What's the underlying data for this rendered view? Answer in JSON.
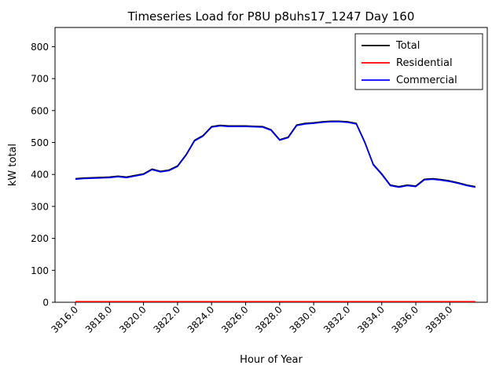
{
  "figure": {
    "title": "Timeseries Load for P8U p8uhs17_1247  Day 160",
    "xlabel": "Hour of Year",
    "ylabel": "kW total"
  },
  "chart_data": {
    "type": "line",
    "title": "Timeseries Load for P8U p8uhs17_1247  Day 160",
    "xlabel": "Hour of Year",
    "ylabel": "kW total",
    "xlim": [
      3814.8,
      3840.2
    ],
    "ylim": [
      0,
      860
    ],
    "grid": false,
    "legend_position": "upper right",
    "xticks": [
      3816,
      3818,
      3820,
      3822,
      3824,
      3826,
      3828,
      3830,
      3832,
      3834,
      3836,
      3838
    ],
    "xtick_labels": [
      "3816.0",
      "3818.0",
      "3820.0",
      "3822.0",
      "3824.0",
      "3826.0",
      "3828.0",
      "3830.0",
      "3832.0",
      "3834.0",
      "3836.0",
      "3838.0"
    ],
    "yticks": [
      0,
      100,
      200,
      300,
      400,
      500,
      600,
      700,
      800
    ],
    "x": [
      3816,
      3816.5,
      3817,
      3817.5,
      3818,
      3818.5,
      3819,
      3819.5,
      3820,
      3820.5,
      3821,
      3821.5,
      3822,
      3822.5,
      3823,
      3823.5,
      3824,
      3824.5,
      3825,
      3825.5,
      3826,
      3826.5,
      3827,
      3827.5,
      3828,
      3828.5,
      3829,
      3829.5,
      3830,
      3830.5,
      3831,
      3831.5,
      3832,
      3832.5,
      3833,
      3833.5,
      3834,
      3834.5,
      3835,
      3835.5,
      3836,
      3836.5,
      3837,
      3837.5,
      3838,
      3838.5,
      3839,
      3839.5
    ],
    "series": [
      {
        "name": "Total",
        "color": "#000000",
        "values": [
          387,
          389,
          390,
          391,
          392,
          395,
          392,
          397,
          402,
          417,
          410,
          414,
          427,
          462,
          507,
          522,
          550,
          554,
          552,
          552,
          552,
          551,
          550,
          540,
          509,
          517,
          555,
          560,
          562,
          565,
          567,
          567,
          565,
          560,
          502,
          432,
          402,
          367,
          362,
          367,
          364,
          385,
          387,
          384,
          380,
          374,
          367,
          362
        ]
      },
      {
        "name": "Residential",
        "color": "#ff0000",
        "values": [
          2,
          2,
          2,
          2,
          2,
          2,
          2,
          2,
          2,
          2,
          2,
          2,
          2,
          2,
          2,
          2,
          2,
          2,
          2,
          2,
          2,
          2,
          2,
          2,
          2,
          2,
          2,
          2,
          2,
          2,
          2,
          2,
          2,
          2,
          2,
          2,
          2,
          2,
          2,
          2,
          2,
          2,
          2,
          2,
          2,
          2,
          2,
          2
        ]
      },
      {
        "name": "Commercial",
        "color": "#0000ff",
        "values": [
          385,
          387,
          388,
          389,
          390,
          393,
          390,
          395,
          400,
          415,
          408,
          412,
          425,
          460,
          505,
          520,
          548,
          552,
          550,
          550,
          550,
          549,
          548,
          538,
          507,
          515,
          553,
          558,
          560,
          563,
          565,
          565,
          563,
          558,
          500,
          430,
          400,
          365,
          360,
          365,
          362,
          383,
          385,
          382,
          378,
          372,
          365,
          360
        ]
      }
    ]
  }
}
